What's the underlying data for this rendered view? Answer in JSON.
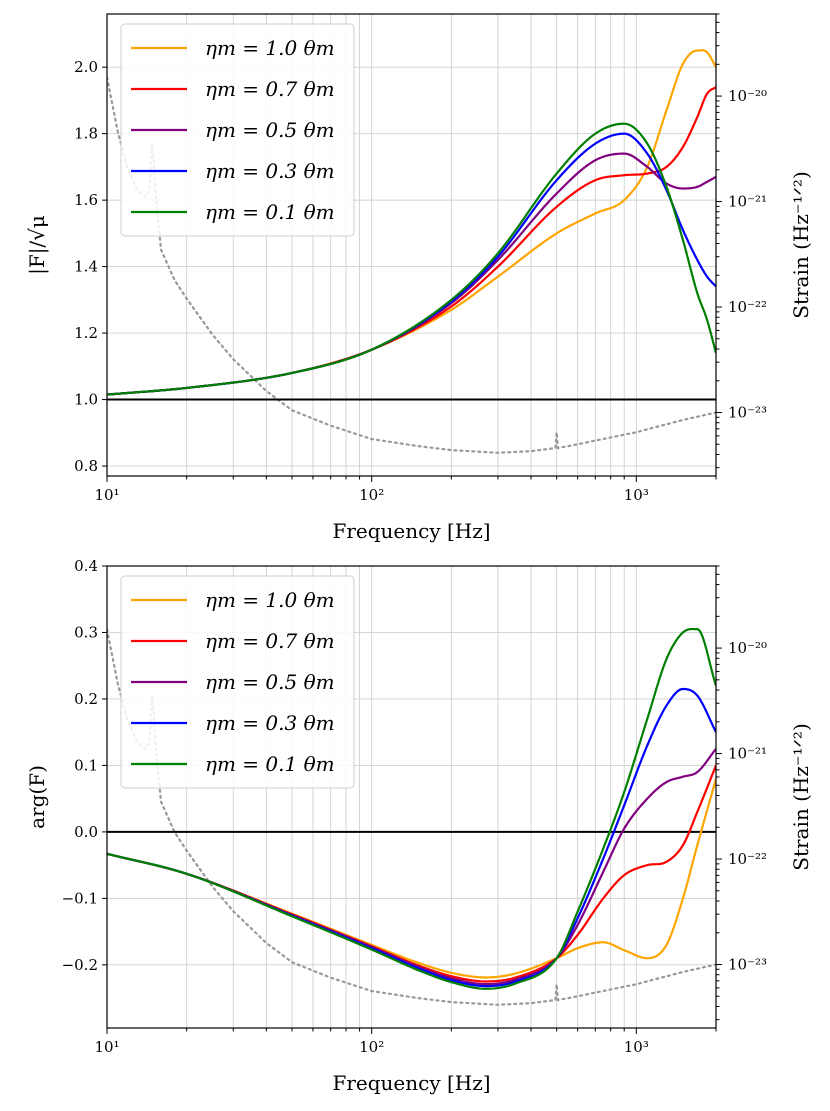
{
  "figure": {
    "xlabel": "Frequency [Hz]",
    "right_ylabel": "Strain (Hz⁻¹ᐟ²)"
  },
  "chart_data": [
    {
      "type": "line",
      "panel": "top",
      "ylabel": "|F|/√μ",
      "xlabel": "Frequency [Hz]",
      "xscale": "log",
      "xlim": [
        10,
        2000
      ],
      "ylim": [
        0.77,
        2.16
      ],
      "yticks": [
        0.8,
        1.0,
        1.2,
        1.4,
        1.6,
        1.8,
        2.0
      ],
      "ytick_labels": [
        "0.8",
        "1.0",
        "1.2",
        "1.4",
        "1.6",
        "1.8",
        "2.0"
      ],
      "xtick_labels": [
        "10¹",
        "10²",
        "10³"
      ],
      "hline": 1.0,
      "legend_position": "top-left",
      "series": [
        {
          "name": "ηm = 1.0 θm",
          "color": "#ffa500",
          "x": [
            10,
            20,
            50,
            100,
            200,
            300,
            500,
            700,
            900,
            1100,
            1300,
            1500,
            1700,
            1850,
            2000
          ],
          "values": [
            1.015,
            1.035,
            1.08,
            1.15,
            1.27,
            1.37,
            1.5,
            1.56,
            1.6,
            1.7,
            1.87,
            2.01,
            2.05,
            2.045,
            2.0
          ]
        },
        {
          "name": "ηm = 0.7 θm",
          "color": "#ff0000",
          "x": [
            10,
            20,
            50,
            100,
            200,
            300,
            500,
            700,
            900,
            1100,
            1300,
            1500,
            1700,
            1850,
            2000
          ],
          "values": [
            1.015,
            1.035,
            1.08,
            1.15,
            1.28,
            1.4,
            1.58,
            1.66,
            1.675,
            1.68,
            1.7,
            1.76,
            1.85,
            1.92,
            1.94
          ]
        },
        {
          "name": "ηm = 0.5 θm",
          "color": "#800080",
          "x": [
            10,
            20,
            50,
            100,
            200,
            300,
            500,
            700,
            900,
            1100,
            1300,
            1500,
            1700,
            1850,
            2000
          ],
          "values": [
            1.015,
            1.035,
            1.08,
            1.15,
            1.29,
            1.42,
            1.62,
            1.72,
            1.74,
            1.7,
            1.65,
            1.635,
            1.64,
            1.655,
            1.67
          ]
        },
        {
          "name": "ηm = 0.3 θm",
          "color": "#0000ff",
          "x": [
            10,
            20,
            50,
            100,
            200,
            300,
            500,
            700,
            900,
            1100,
            1300,
            1500,
            1700,
            1850,
            2000
          ],
          "values": [
            1.015,
            1.035,
            1.08,
            1.15,
            1.295,
            1.43,
            1.66,
            1.77,
            1.8,
            1.74,
            1.63,
            1.51,
            1.42,
            1.37,
            1.34
          ]
        },
        {
          "name": "ηm = 0.1 θm",
          "color": "#008000",
          "x": [
            10,
            20,
            50,
            100,
            200,
            300,
            500,
            700,
            900,
            1100,
            1300,
            1500,
            1700,
            1850,
            2000
          ],
          "values": [
            1.015,
            1.035,
            1.08,
            1.15,
            1.3,
            1.44,
            1.68,
            1.8,
            1.83,
            1.77,
            1.64,
            1.48,
            1.32,
            1.24,
            1.14
          ]
        }
      ],
      "noise_curve": {
        "name": "detector strain noise (dotted, right axis)",
        "color": "#999999",
        "right_ylim": [
          2.5e-24,
          6e-20
        ],
        "right_ytick_labels": [
          "10⁻²³",
          "10⁻²²",
          "10⁻²¹",
          "10⁻²⁰"
        ],
        "right_ytick_values": [
          1e-23,
          1e-22,
          1e-21,
          1e-20
        ],
        "x": [
          10,
          11,
          12,
          13,
          14,
          14.5,
          14.8,
          15,
          15.3,
          16,
          18,
          20,
          25,
          30,
          40,
          50,
          70,
          100,
          150,
          200,
          300,
          400,
          495,
          500,
          505,
          600,
          800,
          1000,
          1500,
          2000
        ],
        "values": [
          1.5e-20,
          4.5e-21,
          2e-21,
          1.3e-21,
          1.1e-21,
          1.3e-21,
          3.5e-21,
          2.5e-21,
          1.1e-21,
          3.5e-22,
          1.8e-22,
          1.2e-22,
          5.5e-23,
          3.2e-23,
          1.6e-23,
          1.05e-23,
          7.5e-24,
          5.6e-24,
          4.8e-24,
          4.4e-24,
          4.15e-24,
          4.3e-24,
          4.6e-24,
          6.5e-24,
          4.6e-24,
          5e-24,
          5.8e-24,
          6.5e-24,
          8.5e-24,
          1e-23
        ]
      }
    },
    {
      "type": "line",
      "panel": "bottom",
      "ylabel": "arg(F)",
      "xlabel": "Frequency [Hz]",
      "xscale": "log",
      "xlim": [
        10,
        2000
      ],
      "ylim": [
        -0.295,
        0.4
      ],
      "yticks": [
        -0.2,
        -0.1,
        0.0,
        0.1,
        0.2,
        0.3,
        0.4
      ],
      "ytick_labels": [
        "−0.2",
        "−0.1",
        "0.0",
        "0.1",
        "0.2",
        "0.3",
        "0.4"
      ],
      "xtick_labels": [
        "10¹",
        "10²",
        "10³"
      ],
      "hline": 0.0,
      "legend_position": "top-left",
      "series": [
        {
          "name": "ηm = 1.0 θm",
          "color": "#ffa500",
          "x": [
            10,
            20,
            50,
            100,
            150,
            200,
            270,
            350,
            500,
            600,
            750,
            900,
            1100,
            1300,
            1500,
            1700,
            2000
          ],
          "values": [
            -0.033,
            -0.063,
            -0.123,
            -0.17,
            -0.197,
            -0.212,
            -0.219,
            -0.213,
            -0.19,
            -0.175,
            -0.166,
            -0.178,
            -0.19,
            -0.17,
            -0.1,
            -0.02,
            0.08
          ]
        },
        {
          "name": "ηm = 0.7 θm",
          "color": "#ff0000",
          "x": [
            10,
            20,
            50,
            100,
            150,
            200,
            270,
            350,
            500,
            600,
            750,
            900,
            1100,
            1300,
            1500,
            1700,
            2000
          ],
          "values": [
            -0.033,
            -0.063,
            -0.124,
            -0.172,
            -0.201,
            -0.217,
            -0.225,
            -0.219,
            -0.19,
            -0.155,
            -0.1,
            -0.065,
            -0.05,
            -0.045,
            -0.02,
            0.03,
            0.1
          ]
        },
        {
          "name": "ηm = 0.5 θm",
          "color": "#800080",
          "x": [
            10,
            20,
            50,
            100,
            150,
            200,
            270,
            350,
            500,
            600,
            750,
            900,
            1100,
            1300,
            1500,
            1700,
            2000
          ],
          "values": [
            -0.033,
            -0.063,
            -0.125,
            -0.173,
            -0.203,
            -0.22,
            -0.229,
            -0.222,
            -0.19,
            -0.14,
            -0.06,
            0.005,
            0.05,
            0.075,
            0.083,
            0.09,
            0.125
          ]
        },
        {
          "name": "ηm = 0.3 θm",
          "color": "#0000ff",
          "x": [
            10,
            20,
            50,
            100,
            150,
            200,
            270,
            350,
            500,
            600,
            750,
            900,
            1100,
            1300,
            1500,
            1700,
            2000
          ],
          "values": [
            -0.033,
            -0.063,
            -0.126,
            -0.175,
            -0.205,
            -0.223,
            -0.232,
            -0.225,
            -0.19,
            -0.13,
            -0.04,
            0.04,
            0.13,
            0.19,
            0.215,
            0.205,
            0.15
          ]
        },
        {
          "name": "ηm = 0.1 θm",
          "color": "#008000",
          "x": [
            10,
            20,
            50,
            100,
            150,
            200,
            270,
            350,
            500,
            600,
            750,
            900,
            1100,
            1300,
            1500,
            1700,
            2000
          ],
          "values": [
            -0.033,
            -0.063,
            -0.127,
            -0.177,
            -0.208,
            -0.226,
            -0.236,
            -0.228,
            -0.19,
            -0.12,
            -0.025,
            0.06,
            0.17,
            0.26,
            0.3,
            0.305,
            0.22
          ]
        }
      ],
      "noise_curve": {
        "name": "detector strain noise (dotted, right axis)",
        "color": "#999999",
        "right_ylim": [
          2.5e-24,
          6e-20
        ],
        "right_ytick_labels": [
          "10⁻²³",
          "10⁻²²",
          "10⁻²¹",
          "10⁻²⁰"
        ],
        "right_ytick_values": [
          1e-23,
          1e-22,
          1e-21,
          1e-20
        ],
        "x": [
          10,
          11,
          12,
          13,
          14,
          14.5,
          14.8,
          15,
          15.3,
          16,
          18,
          20,
          25,
          30,
          40,
          50,
          70,
          100,
          150,
          200,
          300,
          400,
          495,
          500,
          505,
          600,
          800,
          1000,
          1500,
          2000
        ],
        "values": [
          1.5e-20,
          4.5e-21,
          2e-21,
          1.3e-21,
          1.1e-21,
          1.3e-21,
          3.5e-21,
          2.5e-21,
          1.1e-21,
          3.5e-22,
          1.8e-22,
          1.2e-22,
          5.5e-23,
          3.2e-23,
          1.6e-23,
          1.05e-23,
          7.5e-24,
          5.6e-24,
          4.8e-24,
          4.4e-24,
          4.15e-24,
          4.3e-24,
          4.6e-24,
          6.5e-24,
          4.6e-24,
          5e-24,
          5.8e-24,
          6.5e-24,
          8.5e-24,
          1e-23
        ]
      }
    }
  ]
}
